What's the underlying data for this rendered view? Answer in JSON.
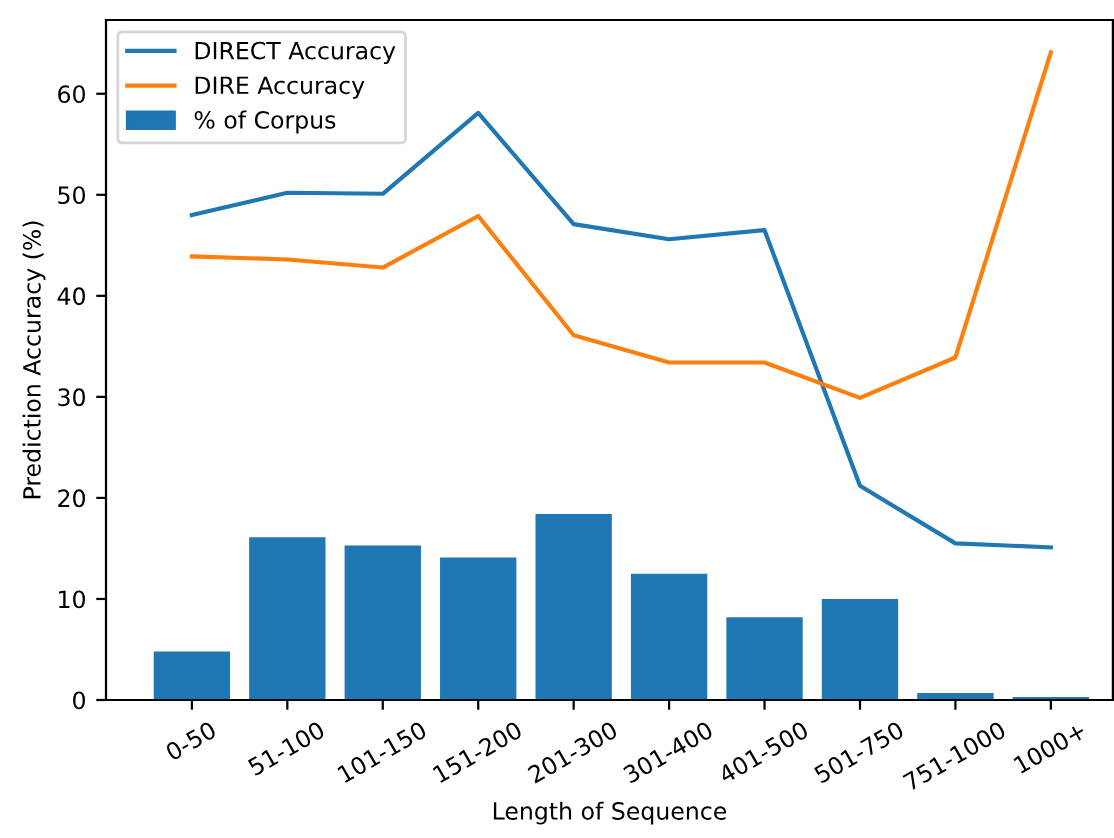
{
  "chart_data": {
    "type": "bar",
    "xlabel": "Length of Sequence",
    "ylabel": "Prediction Accuracy (%)",
    "categories": [
      "0-50",
      "51-100",
      "101-150",
      "151-200",
      "201-300",
      "301-400",
      "401-500",
      "501-750",
      "751-1000",
      "1000+"
    ],
    "series": [
      {
        "name": "DIRECT Accuracy",
        "type": "line",
        "color": "#1f77b4",
        "values": [
          48.0,
          50.2,
          50.1,
          58.1,
          47.1,
          45.6,
          46.5,
          21.2,
          15.5,
          15.1
        ]
      },
      {
        "name": "DIRE Accuracy",
        "type": "line",
        "color": "#ff7f0e",
        "values": [
          43.9,
          43.6,
          42.8,
          47.9,
          36.1,
          33.4,
          33.4,
          29.9,
          33.9,
          64.1
        ]
      },
      {
        "name": "% of Corpus",
        "color": "#1f77b4",
        "values": [
          4.8,
          16.1,
          15.3,
          14.1,
          18.4,
          12.5,
          8.2,
          10.0,
          0.7,
          0.3
        ]
      }
    ],
    "ylim": [
      0,
      67.3
    ],
    "yticks": [
      0,
      10,
      20,
      30,
      40,
      50,
      60
    ],
    "grid": false,
    "legend": "top left"
  }
}
